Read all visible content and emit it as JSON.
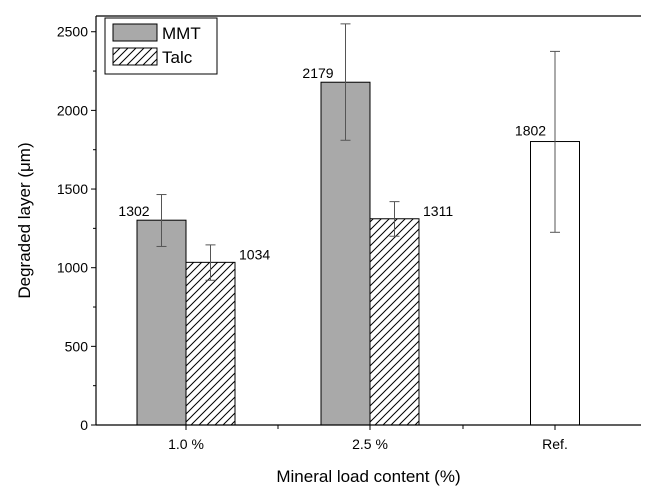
{
  "chart_data": {
    "type": "bar",
    "title": "",
    "xlabel": "Mineral load content (%)",
    "ylabel": "Degraded layer (μm)",
    "ylim": [
      0,
      2600
    ],
    "y_ticks": [
      0,
      500,
      1000,
      1500,
      2000,
      2500
    ],
    "y_tick_labels": [
      "0",
      "500",
      "1000",
      "1500",
      "2000",
      "2500"
    ],
    "categories": [
      "1.0 %",
      "2.5 %",
      "Ref."
    ],
    "grid": false,
    "legend_position": "top-left",
    "series": [
      {
        "name": "MMT",
        "pattern": "solid",
        "color": "#a9a9a9",
        "values": [
          1302,
          2179,
          null
        ],
        "error_low": [
          1135,
          1810,
          null
        ],
        "error_high": [
          1465,
          2550,
          null
        ],
        "labels": [
          "1302",
          "2179",
          ""
        ]
      },
      {
        "name": "Talc",
        "pattern": "diagonal-hatch",
        "color": "#ffffff",
        "values": [
          1034,
          1311,
          null
        ],
        "error_low": [
          920,
          1200,
          null
        ],
        "error_high": [
          1145,
          1420,
          null
        ],
        "labels": [
          "1034",
          "1311",
          ""
        ]
      },
      {
        "name": "",
        "pattern": "none",
        "color": "#ffffff",
        "values": [
          null,
          null,
          1802
        ],
        "error_low": [
          null,
          null,
          1225
        ],
        "error_high": [
          null,
          null,
          2375
        ],
        "labels": [
          "",
          "",
          "1802"
        ]
      }
    ]
  }
}
